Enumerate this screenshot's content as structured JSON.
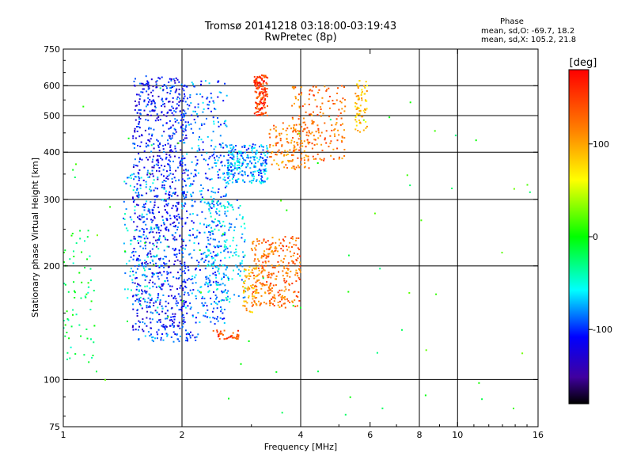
{
  "chart_data": {
    "type": "scatter",
    "title": "Tromsø 20141218 03:18:00-03:19:43",
    "subtitle": "RwPretec (8p)",
    "xlabel": "Frequency [MHz]",
    "ylabel": "Stationary phase Virtual Height [km]",
    "x_scale": "log",
    "y_scale": "log",
    "xlim": [
      1,
      16
    ],
    "ylim": [
      75,
      750
    ],
    "xticks": [
      1,
      2,
      4,
      6,
      8,
      10,
      16
    ],
    "yticks": [
      75,
      100,
      200,
      300,
      400,
      500,
      600,
      750
    ],
    "vgrid": [
      2,
      4,
      8,
      10
    ],
    "hgrid": [
      100,
      200,
      300,
      400,
      500,
      600
    ],
    "phase_box": {
      "title": "Phase",
      "line1": "mean, sd,O: -69.7, 18.2",
      "line2": "mean, sd,X: 105.2, 21.8"
    },
    "colorbar": {
      "label": "[deg]",
      "range": [
        -180,
        180
      ],
      "ticks": [
        -100,
        0,
        100
      ]
    },
    "traces": [
      {
        "x": [
          1.55,
          2.2
        ],
        "y": [
          125,
          135
        ],
        "phase": -95,
        "count": 50,
        "jitter": 0.02
      },
      {
        "x": [
          1.5,
          2.05
        ],
        "y": [
          135,
          640
        ],
        "phase": -110,
        "count": 900,
        "jitter": 0.06
      },
      {
        "x": [
          1.42,
          1.85
        ],
        "y": [
          150,
          360
        ],
        "phase": -70,
        "count": 150,
        "jitter": 0.05
      },
      {
        "x": [
          2.0,
          2.6
        ],
        "y": [
          140,
          620
        ],
        "phase": -90,
        "count": 450,
        "jitter": 0.06
      },
      {
        "x": [
          2.6,
          3.3
        ],
        "y": [
          330,
          420
        ],
        "phase": -80,
        "count": 250,
        "jitter": 0.05
      },
      {
        "x": [
          2.3,
          2.9
        ],
        "y": [
          160,
          300
        ],
        "phase": -70,
        "count": 200,
        "jitter": 0.05
      },
      {
        "x": [
          2.4,
          2.8
        ],
        "y": [
          128,
          135
        ],
        "phase": 150,
        "count": 40,
        "jitter": 0.01
      },
      {
        "x": [
          3.0,
          4.0
        ],
        "y": [
          155,
          240
        ],
        "phase": 130,
        "count": 300,
        "jitter": 0.05
      },
      {
        "x": [
          2.85,
          3.1
        ],
        "y": [
          150,
          200
        ],
        "phase": 100,
        "count": 60,
        "jitter": 0.04
      },
      {
        "x": [
          3.05,
          3.3
        ],
        "y": [
          500,
          640
        ],
        "phase": 150,
        "count": 150,
        "jitter": 0.03
      },
      {
        "x": [
          3.3,
          4.2
        ],
        "y": [
          360,
          480
        ],
        "phase": 120,
        "count": 130,
        "jitter": 0.05
      },
      {
        "x": [
          3.8,
          5.2
        ],
        "y": [
          380,
          600
        ],
        "phase": 130,
        "count": 180,
        "jitter": 0.05
      },
      {
        "x": [
          5.5,
          5.9
        ],
        "y": [
          450,
          620
        ],
        "phase": 90,
        "count": 70,
        "jitter": 0.03
      },
      {
        "x": [
          1.0,
          1.2
        ],
        "y": [
          110,
          250
        ],
        "phase": -20,
        "count": 70,
        "jitter": 0.05
      },
      {
        "x": [
          1.0,
          16.0
        ],
        "y": [
          80,
          650
        ],
        "phase": 0,
        "count": 70,
        "jitter": 0.0
      }
    ]
  }
}
